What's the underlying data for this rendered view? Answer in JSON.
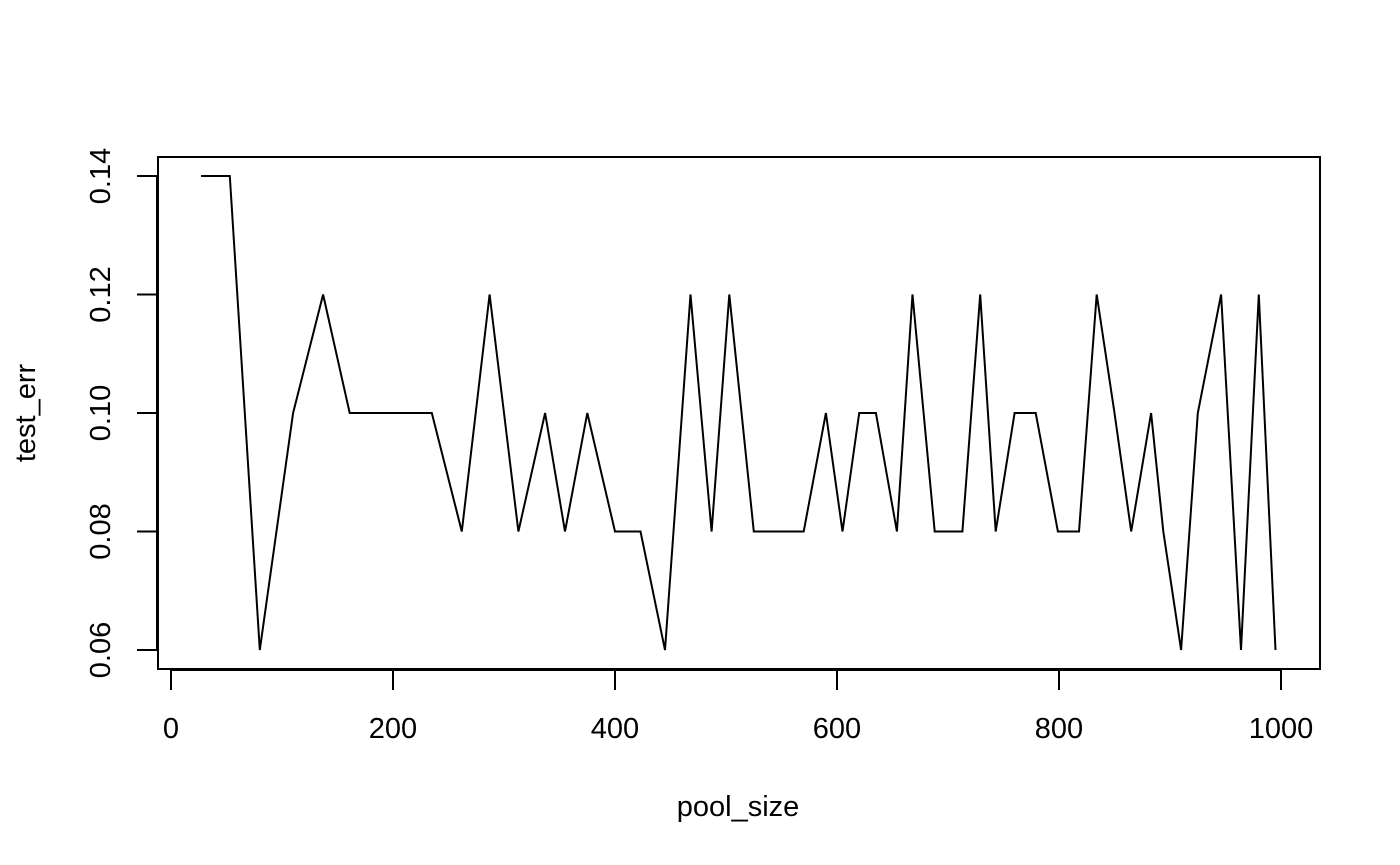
{
  "chart_data": {
    "type": "line",
    "title": "",
    "xlabel": "pool_size",
    "ylabel": "test_err",
    "xlim": [
      0,
      1000
    ],
    "ylim": [
      0.06,
      0.14
    ],
    "x_ticks": [
      0,
      200,
      400,
      600,
      800,
      1000
    ],
    "x_tick_labels": [
      "0",
      "200",
      "400",
      "600",
      "800",
      "1000"
    ],
    "y_ticks": [
      0.06,
      0.08,
      0.1,
      0.12,
      0.14
    ],
    "y_tick_labels": [
      "0.06",
      "0.08",
      "0.10",
      "0.12",
      "0.14"
    ],
    "grid": false,
    "legend": "none",
    "line_color": "#000000",
    "series": [
      {
        "x": [
          27,
          53,
          80,
          110,
          137,
          161,
          185,
          211,
          235,
          262,
          287,
          313,
          337,
          355,
          375,
          400,
          423,
          445,
          468,
          487,
          503,
          525,
          548,
          570,
          590,
          605,
          620,
          635,
          654,
          668,
          688,
          713,
          729,
          743,
          760,
          779,
          799,
          818,
          834,
          850,
          865,
          883,
          894,
          910,
          925,
          946,
          964,
          980,
          995
        ],
        "values": [
          0.14,
          0.14,
          0.06,
          0.1,
          0.12,
          0.1,
          0.1,
          0.1,
          0.1,
          0.08,
          0.12,
          0.08,
          0.1,
          0.08,
          0.1,
          0.08,
          0.08,
          0.06,
          0.12,
          0.08,
          0.12,
          0.08,
          0.08,
          0.08,
          0.1,
          0.08,
          0.1,
          0.1,
          0.08,
          0.12,
          0.08,
          0.08,
          0.12,
          0.08,
          0.1,
          0.1,
          0.08,
          0.08,
          0.12,
          0.1,
          0.08,
          0.1,
          0.08,
          0.06,
          0.1,
          0.12,
          0.06,
          0.12,
          0.06
        ]
      }
    ]
  }
}
